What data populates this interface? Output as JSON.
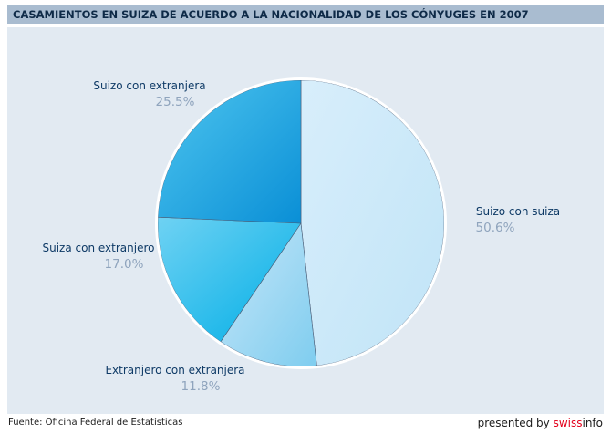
{
  "header": {
    "title": "CASAMIENTOS EN SUIZA DE ACUERDO A LA NACIONALIDAD DE LOS CÓNYUGES EN 2007"
  },
  "chart_data": {
    "type": "pie",
    "title": "CASAMIENTOS EN SUIZA DE ACUERDO A LA NACIONALIDAD DE LOS CÓNYUGES EN 2007",
    "slices": [
      {
        "label": "Suizo con suiza",
        "value": 50.6,
        "value_text": "50.6%",
        "color_light": "#d8eefb",
        "color_dark": "#c0e4f7"
      },
      {
        "label": "Extranjero con extranjera",
        "value": 11.8,
        "value_text": "11.8%",
        "color_light": "#c6e6f8",
        "color_dark": "#7fcdef"
      },
      {
        "label": "Suiza con extranjero",
        "value": 17.0,
        "value_text": "17.0%",
        "color_light": "#6fd2f3",
        "color_dark": "#00aee6"
      },
      {
        "label": "Suizo con extranjera",
        "value": 25.5,
        "value_text": "25.5%",
        "color_light": "#4fc6ef",
        "color_dark": "#0a8fd6"
      }
    ],
    "start": "12 o'clock",
    "direction": "clockwise",
    "legend": "none"
  },
  "footer": {
    "source": "Fuente: Oficina Federal de Estatísticas",
    "presented_by": "presented by ",
    "brand_swiss": "swiss",
    "brand_info": "info"
  }
}
